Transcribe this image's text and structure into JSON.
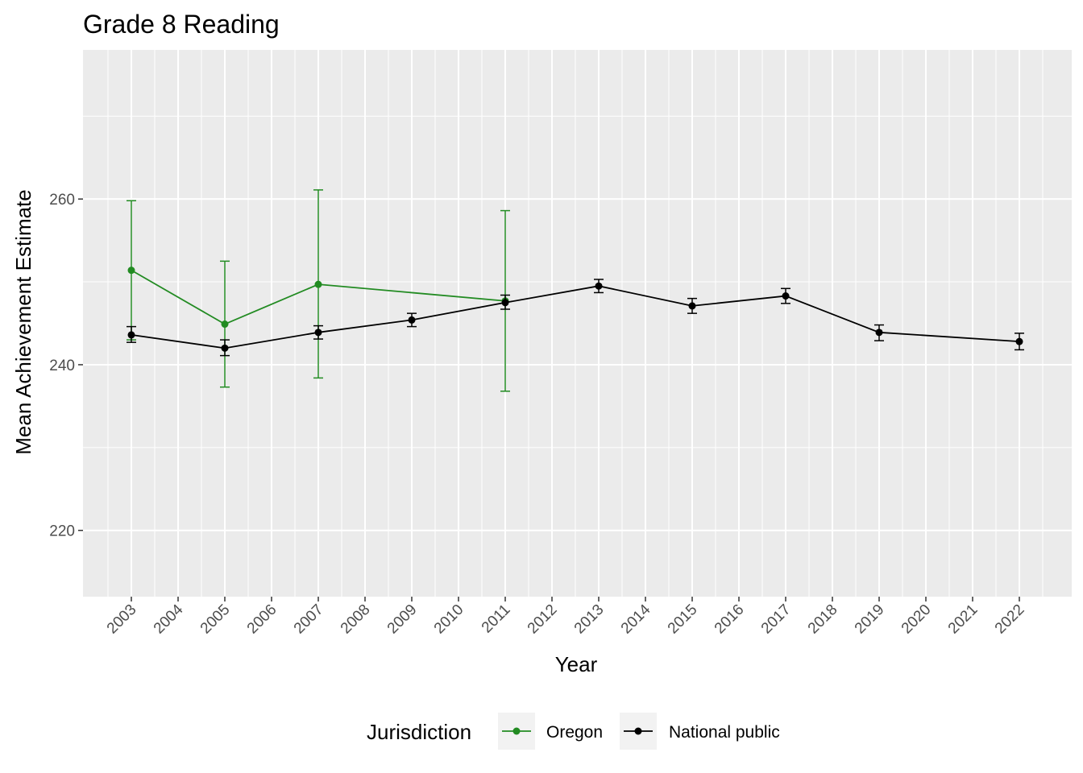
{
  "chart_data": {
    "type": "line",
    "title": "Grade 8 Reading",
    "xlabel": "Year",
    "ylabel": "Mean Achievement Estimate",
    "categories": [
      "2003",
      "2004",
      "2005",
      "2006",
      "2007",
      "2008",
      "2009",
      "2010",
      "2011",
      "2012",
      "2013",
      "2014",
      "2015",
      "2016",
      "2017",
      "2018",
      "2019",
      "2020",
      "2021",
      "2022"
    ],
    "ylim": [
      212,
      278
    ],
    "yticks": [
      220,
      240,
      260
    ],
    "grid": true,
    "legend": {
      "title": "Jurisdiction",
      "position": "bottom",
      "entries": [
        "Oregon",
        "National public"
      ]
    },
    "series": [
      {
        "name": "Oregon",
        "color": "#228B22",
        "points": [
          {
            "x": "2003",
            "y": 251.4,
            "lower": 243.0,
            "upper": 259.8
          },
          {
            "x": "2005",
            "y": 244.9,
            "lower": 237.3,
            "upper": 252.5
          },
          {
            "x": "2007",
            "y": 249.7,
            "lower": 238.4,
            "upper": 261.1
          },
          {
            "x": "2011",
            "y": 247.7,
            "lower": 236.8,
            "upper": 258.6
          }
        ]
      },
      {
        "name": "National public",
        "color": "#000000",
        "points": [
          {
            "x": "2003",
            "y": 243.6,
            "lower": 242.7,
            "upper": 244.6
          },
          {
            "x": "2005",
            "y": 242.0,
            "lower": 241.1,
            "upper": 243.0
          },
          {
            "x": "2007",
            "y": 243.9,
            "lower": 243.1,
            "upper": 244.7
          },
          {
            "x": "2009",
            "y": 245.4,
            "lower": 244.6,
            "upper": 246.2
          },
          {
            "x": "2011",
            "y": 247.5,
            "lower": 246.7,
            "upper": 248.4
          },
          {
            "x": "2013",
            "y": 249.5,
            "lower": 248.7,
            "upper": 250.3
          },
          {
            "x": "2015",
            "y": 247.1,
            "lower": 246.2,
            "upper": 248.0
          },
          {
            "x": "2017",
            "y": 248.3,
            "lower": 247.4,
            "upper": 249.2
          },
          {
            "x": "2019",
            "y": 243.9,
            "lower": 242.9,
            "upper": 244.8
          },
          {
            "x": "2022",
            "y": 242.8,
            "lower": 241.8,
            "upper": 243.8
          }
        ]
      }
    ]
  }
}
